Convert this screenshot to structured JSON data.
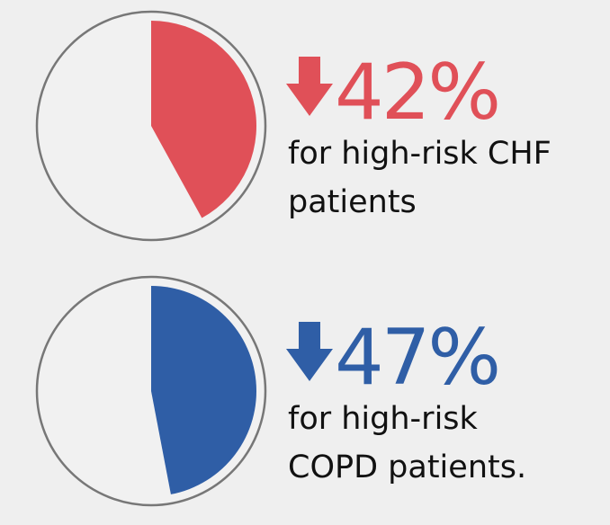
{
  "chart_data": [
    {
      "type": "pie",
      "value_percent": 42,
      "percent_label": "42%",
      "direction": "decrease",
      "caption_lines": [
        "for high-risk CHF",
        "patients"
      ],
      "color": "#e05058"
    },
    {
      "type": "pie",
      "value_percent": 47,
      "percent_label": "47%",
      "direction": "decrease",
      "caption_lines": [
        "for high-risk",
        "COPD patients."
      ],
      "color": "#2f5ea6"
    }
  ],
  "colors": {
    "background": "#efefef",
    "outline": "#777777",
    "text": "#111111"
  },
  "icons": {
    "decrease": "arrow-down-icon"
  }
}
